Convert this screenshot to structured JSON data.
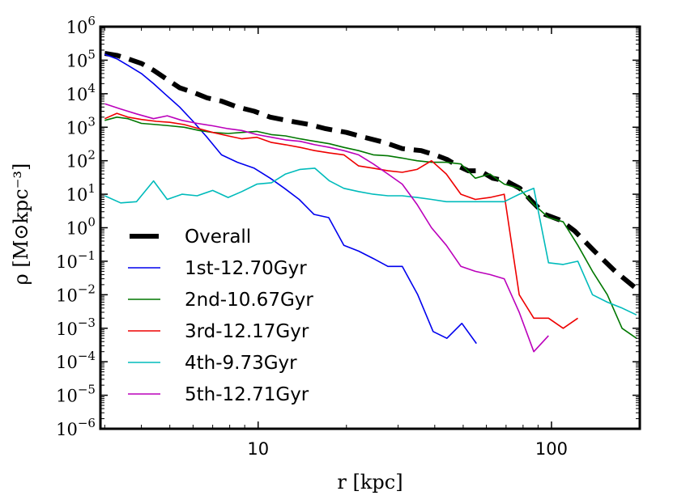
{
  "chart_data": {
    "type": "line",
    "title": "",
    "xlabel": "r [kpc]",
    "ylabel": "ρ [M⊙kpc⁻³]",
    "xscale": "log",
    "yscale": "log",
    "xlim": [
      2.9,
      200
    ],
    "ylim": [
      1e-06,
      1000000.0
    ],
    "x_ticks": [
      {
        "value": 10,
        "label": "10"
      },
      {
        "value": 100,
        "label": "100"
      }
    ],
    "y_ticks": [
      {
        "value": 1000000.0,
        "base": "10",
        "exp": "6"
      },
      {
        "value": 100000.0,
        "base": "10",
        "exp": "5"
      },
      {
        "value": 10000.0,
        "base": "10",
        "exp": "4"
      },
      {
        "value": 1000.0,
        "base": "10",
        "exp": "3"
      },
      {
        "value": 100.0,
        "base": "10",
        "exp": "2"
      },
      {
        "value": 10.0,
        "base": "10",
        "exp": "1"
      },
      {
        "value": 1.0,
        "base": "10",
        "exp": "0"
      },
      {
        "value": 0.1,
        "base": "10",
        "exp": "−1"
      },
      {
        "value": 0.01,
        "base": "10",
        "exp": "−2"
      },
      {
        "value": 0.001,
        "base": "10",
        "exp": "−3"
      },
      {
        "value": 0.0001,
        "base": "10",
        "exp": "−4"
      },
      {
        "value": 1e-05,
        "base": "10",
        "exp": "−5"
      },
      {
        "value": 1e-06,
        "base": "10",
        "exp": "−6"
      }
    ],
    "legend_position": "lower-left",
    "grid": false,
    "series": [
      {
        "name": "Overall",
        "color": "#000000",
        "dashed": true,
        "x": [
          3.0,
          3.3,
          3.6,
          4.0,
          4.4,
          4.8,
          5.4,
          6.0,
          6.7,
          7.5,
          8.5,
          9.7,
          11,
          13,
          15,
          17,
          20,
          23,
          27,
          31,
          36,
          40,
          44,
          48,
          52,
          57,
          63,
          70,
          78,
          86,
          95,
          107,
          120,
          140,
          165,
          195
        ],
        "y": [
          160000,
          140000,
          110000,
          80000,
          50000,
          30000,
          15000,
          11000,
          7500,
          6000,
          4000,
          3000,
          2000,
          1500,
          1200,
          900,
          700,
          500,
          350,
          230,
          200,
          150,
          110,
          70,
          50,
          50,
          30,
          25,
          15,
          6,
          2.5,
          1.7,
          0.8,
          0.2,
          0.05,
          0.015
        ]
      },
      {
        "name": "1st-12.70Gyr",
        "color": "#0000ee",
        "dashed": false,
        "x": [
          3.0,
          3.3,
          3.6,
          4.0,
          4.4,
          4.8,
          5.4,
          6.0,
          6.7,
          7.5,
          8.5,
          9.7,
          11,
          12.3,
          13.8,
          15.5,
          17.4,
          19.6,
          22,
          24.7,
          27.7,
          31,
          35,
          39.5,
          44,
          49.5,
          55.5
        ],
        "y": [
          150000,
          110000,
          70000,
          40000,
          20000,
          10000,
          4000,
          1500,
          500,
          150,
          90,
          60,
          30,
          15,
          7,
          2.5,
          2,
          0.3,
          0.2,
          0.12,
          0.07,
          0.07,
          0.01,
          0.0008,
          0.0005,
          0.0014,
          0.00035
        ]
      },
      {
        "name": "2nd-10.67Gyr",
        "color": "#007700",
        "dashed": false,
        "x": [
          3.0,
          3.3,
          3.6,
          4.0,
          4.5,
          5.0,
          5.6,
          6.3,
          7.0,
          7.9,
          8.8,
          9.9,
          11.1,
          12.4,
          13.9,
          15.6,
          17.5,
          19.6,
          22,
          24.7,
          27.7,
          31,
          34.8,
          39,
          43.8,
          49.1,
          55,
          61.7,
          69,
          77.6,
          87,
          97.7,
          109.6,
          123,
          138,
          155,
          174,
          195
        ],
        "y": [
          1600,
          2000,
          1800,
          1300,
          1200,
          1100,
          1000,
          800,
          700,
          650,
          700,
          750,
          600,
          550,
          450,
          380,
          320,
          250,
          200,
          150,
          140,
          120,
          100,
          90,
          90,
          80,
          30,
          40,
          20,
          15,
          5,
          2,
          1.5,
          0.3,
          0.05,
          0.01,
          0.001,
          0.0005
        ]
      },
      {
        "name": "3rd-12.17Gyr",
        "color": "#ee0000",
        "dashed": false,
        "x": [
          3.0,
          3.3,
          3.6,
          4.0,
          4.5,
          5.0,
          5.6,
          6.3,
          7.0,
          7.9,
          8.8,
          9.9,
          11.1,
          12.4,
          13.9,
          15.6,
          17.5,
          19.6,
          22,
          24.7,
          27.7,
          31,
          34.8,
          39,
          43.8,
          49.1,
          55,
          61.7,
          69,
          77.6,
          87,
          97.7,
          109.6,
          123
        ],
        "y": [
          1800,
          2600,
          2000,
          1700,
          1500,
          1400,
          1200,
          900,
          700,
          550,
          450,
          500,
          350,
          300,
          250,
          200,
          170,
          150,
          70,
          60,
          50,
          45,
          55,
          100,
          40,
          10,
          7,
          8,
          10,
          0.01,
          0.002,
          0.002,
          0.001,
          0.002
        ]
      },
      {
        "name": "4th-9.73Gyr",
        "color": "#00bbbb",
        "dashed": false,
        "x": [
          3.0,
          3.4,
          3.85,
          4.4,
          4.9,
          5.5,
          6.2,
          7.0,
          7.9,
          8.8,
          9.9,
          11.1,
          12.4,
          13.9,
          15.6,
          17.5,
          19.6,
          22,
          24.7,
          27.7,
          31,
          34.8,
          39,
          43.8,
          49.1,
          55,
          61.7,
          69,
          77.6,
          87,
          97.7,
          109.6,
          123,
          138,
          155,
          174,
          195
        ],
        "y": [
          9,
          5.5,
          6,
          25,
          7,
          10,
          9,
          13,
          8,
          12,
          20,
          22,
          40,
          55,
          60,
          25,
          15,
          12,
          10,
          9,
          9,
          8,
          7,
          6,
          6,
          6,
          6,
          6,
          10,
          15,
          0.09,
          0.08,
          0.1,
          0.01,
          0.006,
          0.004,
          0.0025
        ]
      },
      {
        "name": "5th-12.71Gyr",
        "color": "#bb00bb",
        "dashed": false,
        "x": [
          3.0,
          3.4,
          3.85,
          4.4,
          4.9,
          5.5,
          6.2,
          7.0,
          7.9,
          8.8,
          9.9,
          11.1,
          12.4,
          13.9,
          15.6,
          17.5,
          19.6,
          22,
          24.7,
          27.7,
          31,
          34.8,
          39,
          43.8,
          49.1,
          55,
          61.7,
          69,
          77.6,
          87,
          97.7
        ],
        "y": [
          5000,
          3500,
          2500,
          1800,
          2200,
          1600,
          1300,
          1100,
          900,
          800,
          600,
          500,
          420,
          380,
          300,
          250,
          200,
          150,
          80,
          40,
          20,
          5,
          1,
          0.3,
          0.07,
          0.05,
          0.04,
          0.03,
          0.003,
          0.0002,
          0.0006
        ]
      }
    ]
  }
}
